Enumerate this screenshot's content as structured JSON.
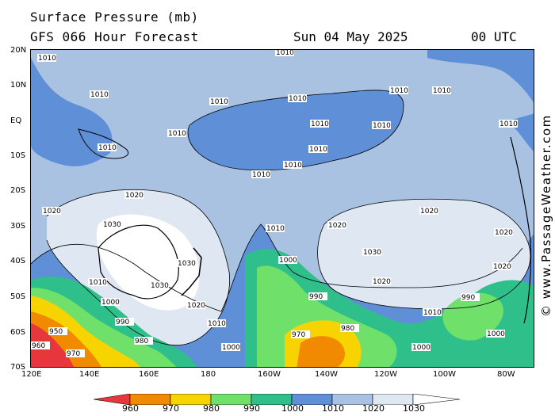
{
  "header": {
    "title": "Surface Pressure (mb)",
    "subtitle": "GFS 066 Hour Forecast",
    "date": "Sun 04 May 2025",
    "time": "00 UTC"
  },
  "axes": {
    "lat_labels": [
      "20N",
      "10N",
      "EQ",
      "10S",
      "20S",
      "30S",
      "40S",
      "50S",
      "60S",
      "70S"
    ],
    "lon_labels": [
      "120E",
      "140E",
      "160E",
      "180",
      "160W",
      "140W",
      "120W",
      "100W",
      "80W"
    ]
  },
  "isobar_labels": [
    "1010",
    "1020",
    "1030",
    "1000",
    "990",
    "980",
    "970",
    "960",
    "950"
  ],
  "scale": {
    "labels": [
      "960",
      "970",
      "980",
      "990",
      "1000",
      "1010",
      "1020",
      "1030"
    ],
    "colors": [
      "#e8373c",
      "#f28a00",
      "#f7d400",
      "#6fe06a",
      "#2fbf8a",
      "#5f8fd6",
      "#a9c2e2",
      "#dfe7f2",
      "#ffffff"
    ]
  },
  "watermark": "© www.PassageWeather.com"
}
